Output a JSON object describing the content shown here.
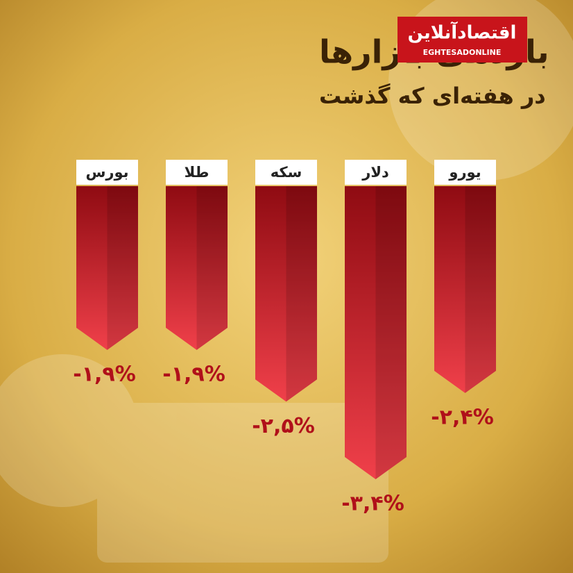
{
  "chart_data": {
    "type": "bar",
    "title": "بازدهی بازارها",
    "subtitle": "در هفته‌ای که گذشت",
    "brand": "اقتصادآنلاین",
    "brand_latin": "EGHTESADONLINE",
    "categories": [
      "بورس",
      "طلا",
      "سکه",
      "دلار",
      "یورو"
    ],
    "values": [
      -1.9,
      -1.9,
      -2.5,
      -3.4,
      -2.4
    ],
    "value_labels": [
      "-۱,۹%",
      "-۱,۹%",
      "-۲,۵%",
      "-۳,۴%",
      "-۲,۴%"
    ],
    "color": "#d91f2a"
  }
}
